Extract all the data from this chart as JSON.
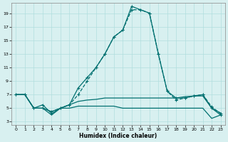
{
  "title": "",
  "xlabel": "Humidex (Indice chaleur)",
  "background_color": "#d8f0f0",
  "line_color": "#007070",
  "grid_color": "#b0dede",
  "xlim": [
    -0.5,
    23.5
  ],
  "ylim": [
    2.5,
    20.5
  ],
  "yticks": [
    3,
    5,
    7,
    9,
    11,
    13,
    15,
    17,
    19
  ],
  "xticks": [
    0,
    1,
    2,
    3,
    4,
    5,
    6,
    7,
    8,
    9,
    10,
    11,
    12,
    13,
    14,
    15,
    16,
    17,
    18,
    19,
    20,
    21,
    22,
    23
  ],
  "s1_x": [
    0,
    1,
    2,
    3,
    4,
    5,
    6,
    7,
    8,
    9,
    10,
    11,
    12,
    13,
    14,
    15,
    16,
    17,
    18,
    19,
    20,
    21,
    22,
    23
  ],
  "s1_y": [
    7,
    7,
    5,
    5.5,
    4.2,
    5,
    5.5,
    8.0,
    9.5,
    11,
    13,
    15.5,
    16.5,
    20.0,
    19.5,
    19.0,
    13.0,
    7.5,
    6.5,
    6.5,
    6.8,
    7.0,
    5.0,
    4.0
  ],
  "s2_x": [
    0,
    1,
    2,
    3,
    4,
    5,
    6,
    7,
    8,
    9,
    10,
    11,
    12,
    13,
    14,
    15,
    16,
    17,
    18,
    19,
    20,
    21,
    22,
    23
  ],
  "s2_y": [
    7,
    7,
    5,
    5.0,
    4.5,
    5,
    5.5,
    7.0,
    9.0,
    11,
    13,
    15.5,
    16.5,
    19.5,
    19.5,
    19.0,
    13.0,
    7.5,
    6.2,
    6.5,
    6.8,
    7.0,
    5.2,
    4.2
  ],
  "s3_x": [
    0,
    1,
    2,
    3,
    4,
    5,
    6,
    7,
    8,
    9,
    10,
    11,
    12,
    13,
    14,
    15,
    16,
    17,
    18,
    19,
    20,
    21,
    22,
    23
  ],
  "s3_y": [
    7,
    7,
    5,
    5.0,
    4.5,
    5.0,
    5.5,
    6.0,
    6.2,
    6.3,
    6.5,
    6.5,
    6.5,
    6.5,
    6.5,
    6.5,
    6.5,
    6.5,
    6.5,
    6.7,
    6.8,
    6.8,
    5.0,
    4.3
  ],
  "s4_x": [
    0,
    1,
    2,
    3,
    4,
    5,
    6,
    7,
    8,
    9,
    10,
    11,
    12,
    13,
    14,
    15,
    16,
    17,
    18,
    19,
    20,
    21,
    22,
    23
  ],
  "s4_y": [
    7,
    7,
    5,
    5.0,
    4.0,
    5.0,
    5.0,
    5.3,
    5.3,
    5.3,
    5.3,
    5.3,
    5.0,
    5.0,
    5.0,
    5.0,
    5.0,
    5.0,
    5.0,
    5.0,
    5.0,
    5.0,
    3.5,
    4.0
  ]
}
